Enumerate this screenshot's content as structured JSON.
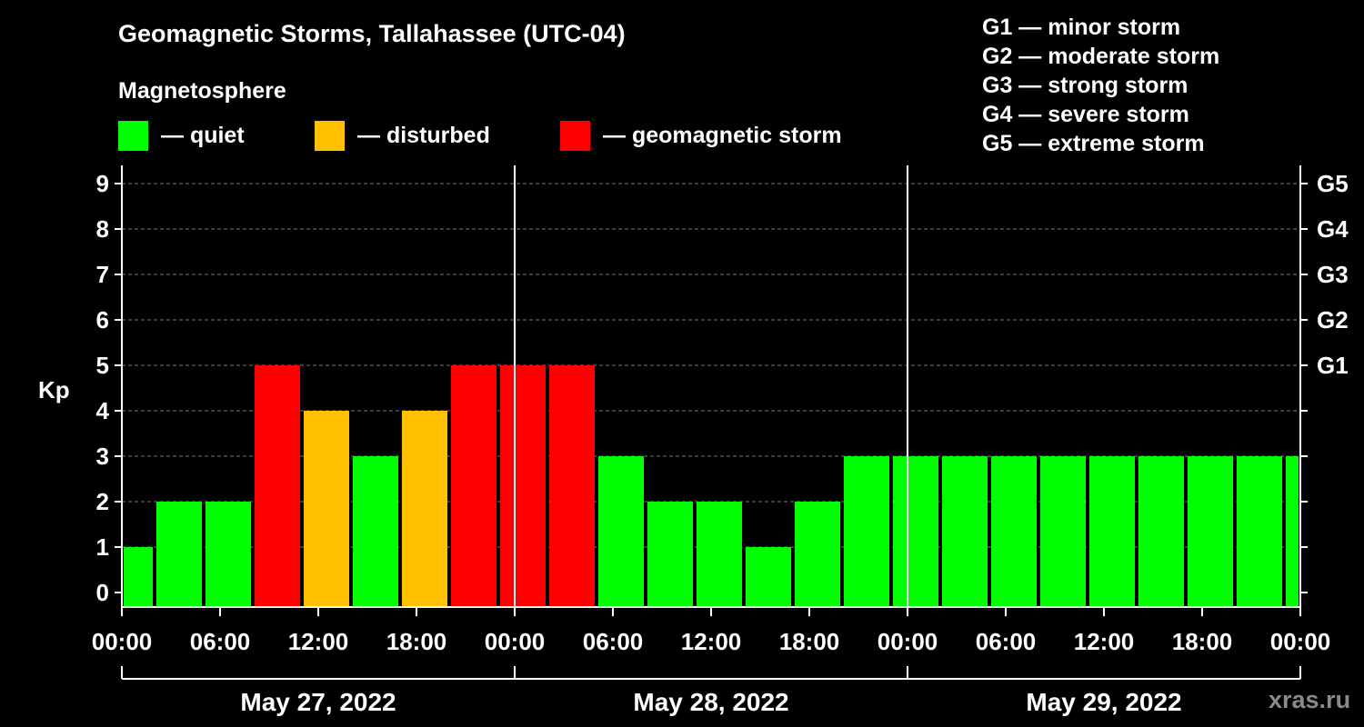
{
  "title": "Geomagnetic Storms, Tallahassee (UTC-04)",
  "subtitle": "Magnetosphere",
  "legend": [
    {
      "label": "— quiet",
      "color": "#00ff00"
    },
    {
      "label": "— disturbed",
      "color": "#ffc000"
    },
    {
      "label": "— geomagnetic storm",
      "color": "#ff0000"
    }
  ],
  "storm_scale": [
    "G1 — minor storm",
    "G2 — moderate storm",
    "G3 — strong storm",
    "G4 — severe storm",
    "G5 — extreme storm"
  ],
  "watermark": "xras.ru",
  "chart_data": {
    "type": "bar",
    "title": "Geomagnetic Storms, Tallahassee (UTC-04)",
    "ylabel": "Kp",
    "ylim": [
      0,
      9
    ],
    "yticks": [
      0,
      1,
      2,
      3,
      4,
      5,
      6,
      7,
      8,
      9
    ],
    "right_ticks": [
      {
        "value": 5,
        "label": "G1"
      },
      {
        "value": 6,
        "label": "G2"
      },
      {
        "value": 7,
        "label": "G3"
      },
      {
        "value": 8,
        "label": "G4"
      },
      {
        "value": 9,
        "label": "G5"
      }
    ],
    "x_hours_range": [
      0,
      72
    ],
    "xticks": [
      "00:00",
      "06:00",
      "12:00",
      "18:00",
      "00:00",
      "06:00",
      "12:00",
      "18:00",
      "00:00",
      "06:00",
      "12:00",
      "18:00",
      "00:00"
    ],
    "days": [
      "May 27, 2022",
      "May 28, 2022",
      "May 29, 2022"
    ],
    "colors": {
      "quiet": "#00ff00",
      "disturbed": "#ffc000",
      "storm": "#ff0000"
    },
    "bars": [
      {
        "start": 0,
        "end": 2,
        "kp": 1,
        "level": "quiet"
      },
      {
        "start": 2,
        "end": 5,
        "kp": 2,
        "level": "quiet"
      },
      {
        "start": 5,
        "end": 8,
        "kp": 2,
        "level": "quiet"
      },
      {
        "start": 8,
        "end": 11,
        "kp": 5,
        "level": "storm"
      },
      {
        "start": 11,
        "end": 14,
        "kp": 4,
        "level": "disturbed"
      },
      {
        "start": 14,
        "end": 17,
        "kp": 3,
        "level": "quiet"
      },
      {
        "start": 17,
        "end": 20,
        "kp": 4,
        "level": "disturbed"
      },
      {
        "start": 20,
        "end": 23,
        "kp": 5,
        "level": "storm"
      },
      {
        "start": 23,
        "end": 26,
        "kp": 5,
        "level": "storm"
      },
      {
        "start": 26,
        "end": 29,
        "kp": 5,
        "level": "storm"
      },
      {
        "start": 29,
        "end": 32,
        "kp": 3,
        "level": "quiet"
      },
      {
        "start": 32,
        "end": 35,
        "kp": 2,
        "level": "quiet"
      },
      {
        "start": 35,
        "end": 38,
        "kp": 2,
        "level": "quiet"
      },
      {
        "start": 38,
        "end": 41,
        "kp": 1,
        "level": "quiet"
      },
      {
        "start": 41,
        "end": 44,
        "kp": 2,
        "level": "quiet"
      },
      {
        "start": 44,
        "end": 47,
        "kp": 3,
        "level": "quiet"
      },
      {
        "start": 47,
        "end": 50,
        "kp": 3,
        "level": "quiet"
      },
      {
        "start": 50,
        "end": 53,
        "kp": 3,
        "level": "quiet"
      },
      {
        "start": 53,
        "end": 56,
        "kp": 3,
        "level": "quiet"
      },
      {
        "start": 56,
        "end": 59,
        "kp": 3,
        "level": "quiet"
      },
      {
        "start": 59,
        "end": 62,
        "kp": 3,
        "level": "quiet"
      },
      {
        "start": 62,
        "end": 65,
        "kp": 3,
        "level": "quiet"
      },
      {
        "start": 65,
        "end": 68,
        "kp": 3,
        "level": "quiet"
      },
      {
        "start": 68,
        "end": 71,
        "kp": 3,
        "level": "quiet"
      },
      {
        "start": 71,
        "end": 72,
        "kp": 3,
        "level": "quiet"
      }
    ]
  }
}
